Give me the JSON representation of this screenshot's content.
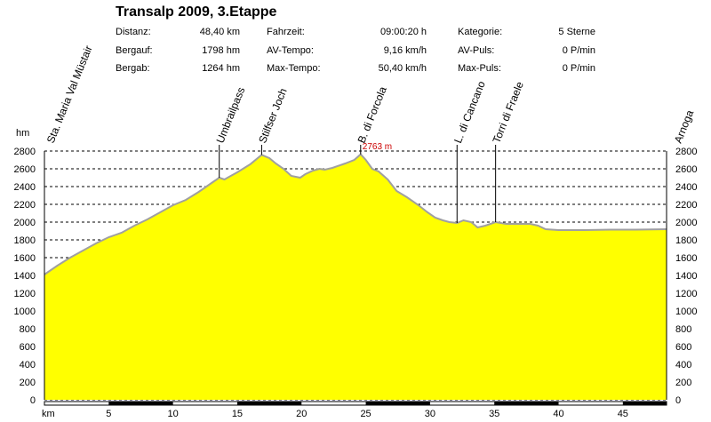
{
  "header": {
    "title": "Transalp 2009, 3.Etappe",
    "stats": [
      {
        "label": "Distanz:",
        "value": "48,40 km"
      },
      {
        "label": "Fahrzeit:",
        "value": "09:00:20 h"
      },
      {
        "label": "Kategorie:",
        "value": "5 Sterne"
      },
      {
        "label": "Bergauf:",
        "value": "1798 hm"
      },
      {
        "label": "AV-Tempo:",
        "value": "9,16 km/h"
      },
      {
        "label": "AV-Puls:",
        "value": "0 P/min"
      },
      {
        "label": "Bergab:",
        "value": "1264 hm"
      },
      {
        "label": "Max-Tempo:",
        "value": "50,40 km/h"
      },
      {
        "label": "Max-Puls:",
        "value": "0 P/min"
      }
    ]
  },
  "chart_data": {
    "type": "area",
    "ylabel": "hm",
    "xlabel": "km",
    "xlim": [
      0,
      48.4
    ],
    "ylim": [
      0,
      2800
    ],
    "y_ticks": [
      0,
      200,
      400,
      600,
      800,
      1000,
      1200,
      1400,
      1600,
      1800,
      2000,
      2200,
      2400,
      2600,
      2800
    ],
    "x_ticks": [
      5,
      10,
      15,
      20,
      25,
      30,
      35,
      40,
      45
    ],
    "grid": "horizontal dashed",
    "fill_color": "#ffff00",
    "line_color": "#a0a0a0",
    "max_label": "2763 m",
    "max_point": {
      "x": 24.6,
      "y": 2763
    },
    "waypoints": [
      {
        "name": "Sta. Maria Val Müstair",
        "x": 0,
        "y": 1410
      },
      {
        "name": "Umbrailpass",
        "x": 13.6,
        "y": 2500
      },
      {
        "name": "Stilfser Joch",
        "x": 16.9,
        "y": 2757
      },
      {
        "name": "B. di Forcola",
        "x": 24.6,
        "y": 2763
      },
      {
        "name": "L. di Cancano",
        "x": 32.1,
        "y": 1990
      },
      {
        "name": "Torri di Fraele",
        "x": 35.1,
        "y": 2000
      },
      {
        "name": "Arnoga",
        "x": 48.4,
        "y": 1920
      }
    ],
    "series": [
      {
        "x": [
          0,
          1,
          2,
          3,
          4,
          5,
          6,
          7,
          8,
          9,
          10,
          11,
          12,
          13,
          13.6,
          14,
          15,
          16,
          16.9,
          17.5,
          18,
          18.6,
          19.2,
          19.9,
          20.3,
          20.9,
          21.4,
          21.8,
          22.4,
          23.4,
          24.1,
          24.6,
          25,
          25.5,
          26,
          26.7,
          27.4,
          28.2,
          29.1,
          29.8,
          30.4,
          31,
          31.5,
          32.1,
          32.6,
          33.2,
          33.7,
          34.3,
          35.1,
          35.9,
          36.9,
          37.8,
          38.4,
          39,
          40,
          42,
          44,
          46,
          48.4
        ],
        "y": [
          1410,
          1510,
          1600,
          1680,
          1760,
          1830,
          1880,
          1960,
          2030,
          2110,
          2190,
          2250,
          2340,
          2440,
          2500,
          2480,
          2560,
          2650,
          2757,
          2720,
          2660,
          2600,
          2520,
          2500,
          2540,
          2580,
          2600,
          2590,
          2610,
          2660,
          2700,
          2763,
          2700,
          2600,
          2570,
          2480,
          2350,
          2280,
          2190,
          2110,
          2050,
          2020,
          2000,
          1990,
          2020,
          2000,
          1940,
          1960,
          2000,
          1980,
          1980,
          1980,
          1960,
          1920,
          1910,
          1910,
          1915,
          1915,
          1920
        ]
      }
    ]
  }
}
